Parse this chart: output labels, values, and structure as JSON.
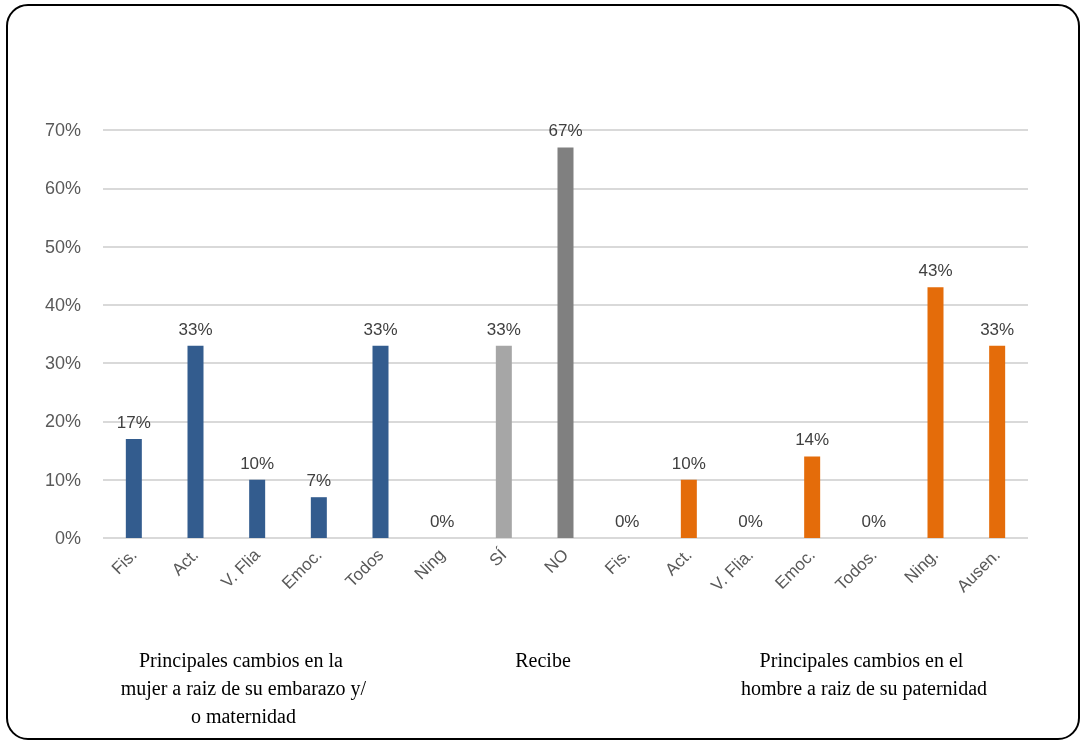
{
  "chart_data": {
    "type": "bar",
    "categories": [
      "Fis.",
      "Act.",
      "V. Flia",
      "Emoc.",
      "Todos",
      "Ning",
      "SÍ",
      "NO",
      "Fis.",
      "Act.",
      "V. Flia.",
      "Emoc.",
      "Todos.",
      "Ning.",
      "Ausen."
    ],
    "values": [
      17,
      33,
      10,
      7,
      33,
      0,
      33,
      67,
      0,
      10,
      0,
      14,
      0,
      43,
      33
    ],
    "value_labels": [
      "17%",
      "33%",
      "10%",
      "7%",
      "33%",
      "0%",
      "33%",
      "67%",
      "0%",
      "10%",
      "0%",
      "14%",
      "0%",
      "43%",
      "33%"
    ],
    "colors": [
      "#335c8e",
      "#335c8e",
      "#335c8e",
      "#335c8e",
      "#335c8e",
      "#a6a6a6",
      "#a6a6a6",
      "#808080",
      "#e46c0a",
      "#e46c0a",
      "#e46c0a",
      "#e46c0a",
      "#e46c0a",
      "#e46c0a",
      "#e46c0a"
    ],
    "ylim": [
      0,
      70
    ],
    "yticks": [
      {
        "value": 0,
        "label": "0%"
      },
      {
        "value": 10,
        "label": "10%"
      },
      {
        "value": 20,
        "label": "20%"
      },
      {
        "value": 30,
        "label": "30%"
      },
      {
        "value": 40,
        "label": "40%"
      },
      {
        "value": 50,
        "label": "50%"
      },
      {
        "value": 60,
        "label": "60%"
      },
      {
        "value": 70,
        "label": "70%"
      }
    ],
    "grid": "y",
    "annotations": [
      "Principales cambios en la mujer a raiz de su embarazo y/o maternidad",
      "Recibe",
      "Principales cambios en el hombre a raiz de su paternidad"
    ]
  }
}
